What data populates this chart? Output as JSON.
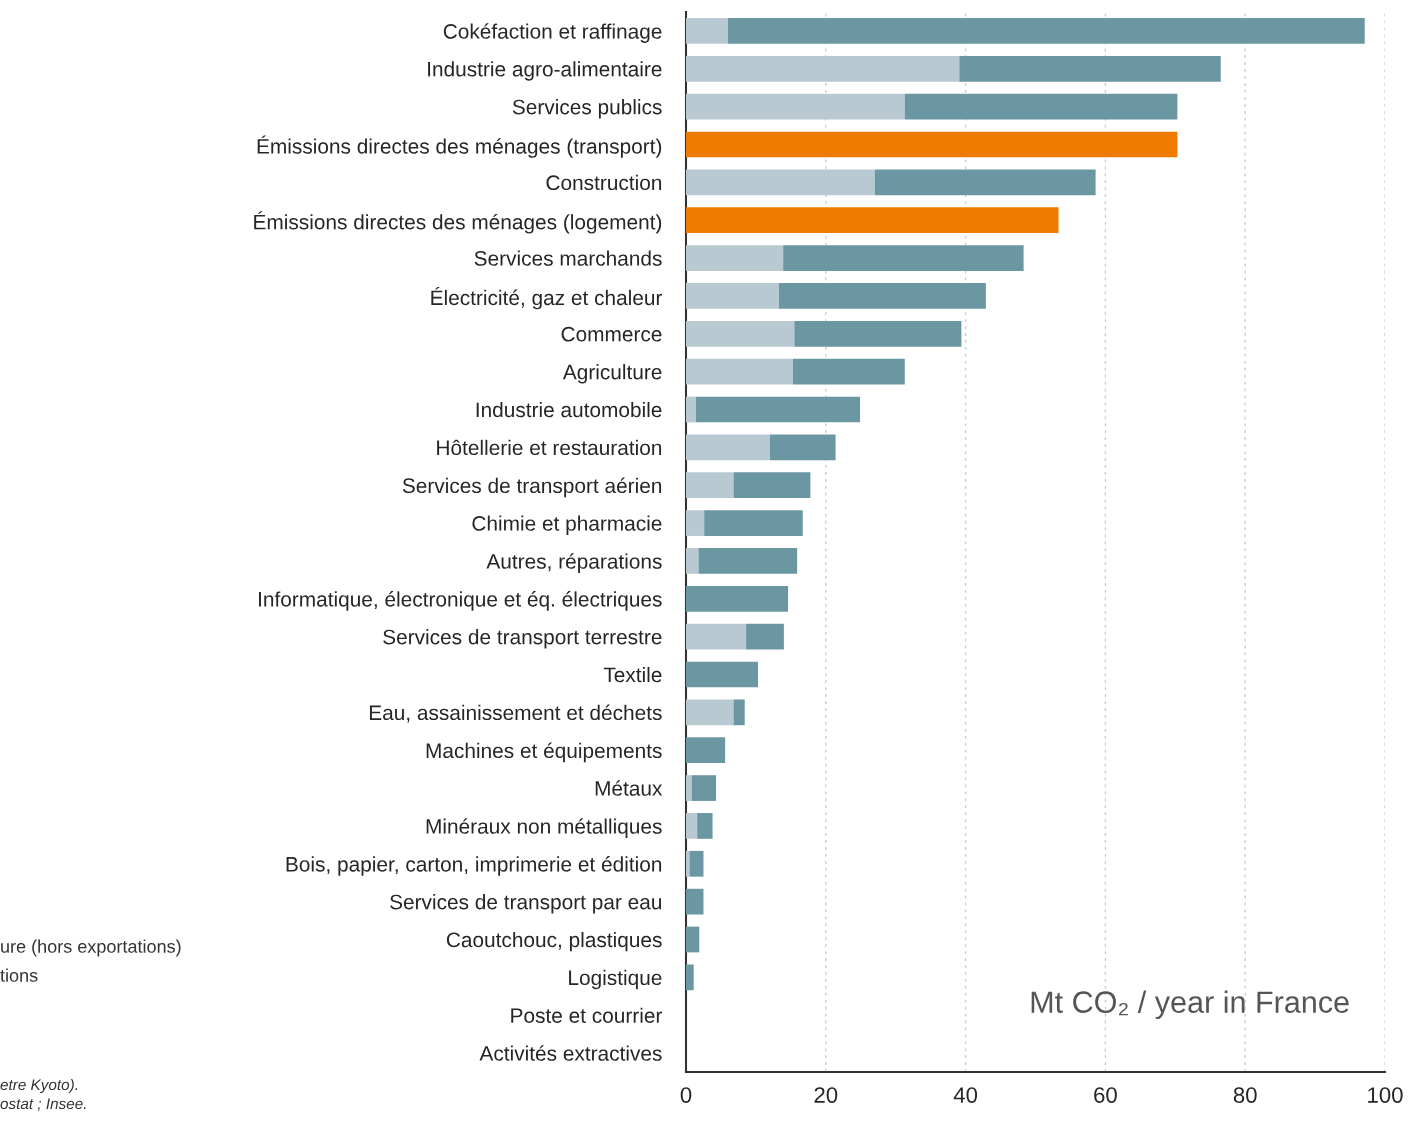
{
  "chart_data": {
    "type": "bar",
    "orientation": "horizontal",
    "stacked": true,
    "categories": [
      "Cokéfaction et raffinage",
      "Industrie agro-alimentaire",
      "Services publics",
      "Émissions directes des ménages (transport)",
      "Construction",
      "Émissions directes des ménages (logement)",
      "Services marchands",
      "Électricité, gaz et chaleur",
      "Commerce",
      "Agriculture",
      "Industrie automobile",
      "Hôtellerie et restauration",
      "Services de transport aérien",
      "Chimie et pharmacie",
      "Autres, réparations",
      "Informatique, électronique et éq. électriques",
      "Services de transport terrestre",
      "Textile",
      "Eau, assainissement et déchets",
      "Machines et équipements",
      "Métaux",
      "Minéraux non métalliques",
      "Bois, papier, carton, imprimerie et édition",
      "Services de transport par eau",
      "Caoutchouc, plastiques",
      "Logistique",
      "Poste et courrier",
      "Activités extractives"
    ],
    "series": [
      {
        "color": "#b9c9d1",
        "values": [
          6.0,
          39.1,
          31.3,
          null,
          27.0,
          null,
          13.9,
          13.3,
          15.5,
          15.3,
          1.4,
          12.0,
          6.8,
          2.6,
          1.8,
          0,
          8.6,
          0,
          6.8,
          0,
          0.8,
          1.6,
          0.5,
          0,
          0,
          0,
          0,
          0
        ]
      },
      {
        "color": "#6b97a3",
        "values": [
          91.1,
          37.4,
          39.0,
          null,
          31.6,
          null,
          34.4,
          29.6,
          23.9,
          16.0,
          23.5,
          9.4,
          11.0,
          14.1,
          14.1,
          14.6,
          5.4,
          10.3,
          1.6,
          5.6,
          3.5,
          2.2,
          2.0,
          2.5,
          1.9,
          1.1,
          0,
          0
        ]
      },
      {
        "color": "#ee7a00",
        "values": [
          null,
          null,
          null,
          70.3,
          null,
          53.3,
          null,
          null,
          null,
          null,
          null,
          null,
          null,
          null,
          null,
          null,
          null,
          null,
          null,
          null,
          null,
          null,
          null,
          null,
          null,
          null,
          null,
          null
        ]
      }
    ],
    "xlim": [
      0,
      100
    ],
    "xticks": [
      0,
      20,
      40,
      60,
      80,
      100
    ],
    "grid": "x",
    "legend": false,
    "annotations": [
      "Mt CO₂ / year in France",
      "ure (hors exportations)",
      "tions",
      "etre Kyoto).",
      "ostat ; Insee."
    ]
  }
}
